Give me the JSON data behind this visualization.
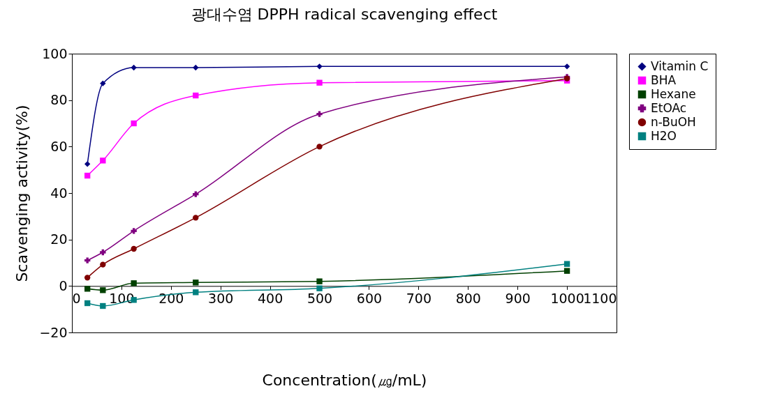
{
  "chart_data": {
    "type": "line",
    "title": "광대수염 DPPH radical scavenging effect",
    "xlabel": "Concentration(㎍/mL)",
    "ylabel": "Scavenging activity(%)",
    "x": [
      31.25,
      62.5,
      125,
      250,
      500,
      1000
    ],
    "xlim": [
      0,
      1100
    ],
    "xticks": [
      0,
      100,
      200,
      300,
      400,
      500,
      600,
      700,
      800,
      900,
      1000,
      1100
    ],
    "ylim": [
      -20,
      100
    ],
    "yticks": [
      -20,
      0,
      20,
      40,
      60,
      80,
      100
    ],
    "grid": false,
    "legend": "right",
    "series": [
      {
        "name": "Vitamin C",
        "color": "#000080",
        "marker": "diamond",
        "values": [
          52.5,
          87.2,
          94,
          94,
          94.5,
          94.5
        ]
      },
      {
        "name": "BHA",
        "color": "#ff00ff",
        "marker": "square",
        "values": [
          47.5,
          54,
          70,
          82,
          87.5,
          88.4
        ]
      },
      {
        "name": "Hexane",
        "color": "#004000",
        "marker": "square",
        "values": [
          -1.2,
          -1.8,
          1.2,
          1.5,
          2,
          6.5
        ]
      },
      {
        "name": "EtOAc",
        "color": "#800080",
        "marker": "cross",
        "values": [
          11,
          14.5,
          23.7,
          39.5,
          74,
          90
        ]
      },
      {
        "name": "n-BuOH",
        "color": "#800000",
        "marker": "circle",
        "values": [
          3.6,
          9.2,
          16,
          29.4,
          60,
          89.3
        ]
      },
      {
        "name": "H2O",
        "color": "#008080",
        "marker": "square",
        "values": [
          -7.4,
          -8.6,
          -6,
          -2.7,
          -1,
          9.5
        ]
      }
    ]
  }
}
